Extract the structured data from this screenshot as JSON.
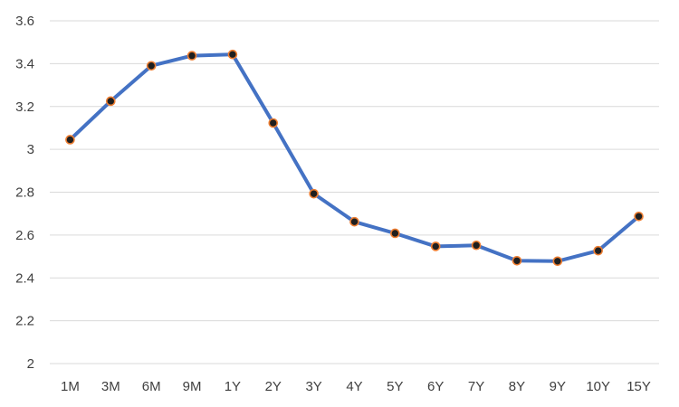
{
  "chart_data": {
    "type": "line",
    "title": "",
    "xlabel": "",
    "ylabel": "",
    "categories": [
      "1M",
      "3M",
      "6M",
      "9M",
      "1Y",
      "2Y",
      "3Y",
      "4Y",
      "5Y",
      "6Y",
      "7Y",
      "8Y",
      "9Y",
      "10Y",
      "15Y"
    ],
    "series": [
      {
        "values": [
          3.045,
          3.225,
          3.39,
          3.437,
          3.443,
          3.123,
          2.793,
          2.662,
          2.608,
          2.547,
          2.552,
          2.48,
          2.478,
          2.527,
          2.687
        ]
      }
    ],
    "ylim": [
      2,
      3.6
    ],
    "yticks": [
      2,
      2.2,
      2.4,
      2.6,
      2.8,
      3,
      3.2,
      3.4,
      3.6
    ],
    "ytick_labels": [
      "2",
      "2.2",
      "2.4",
      "2.6",
      "2.8",
      "3",
      "3.2",
      "3.4",
      "3.6"
    ],
    "grid": true,
    "legend": "none",
    "colors": {
      "line": "#4472c4",
      "marker_fill": "#1f1f1f",
      "marker_stroke": "#ed7d31",
      "grid": "#d9d9d9",
      "text": "#404040"
    }
  }
}
